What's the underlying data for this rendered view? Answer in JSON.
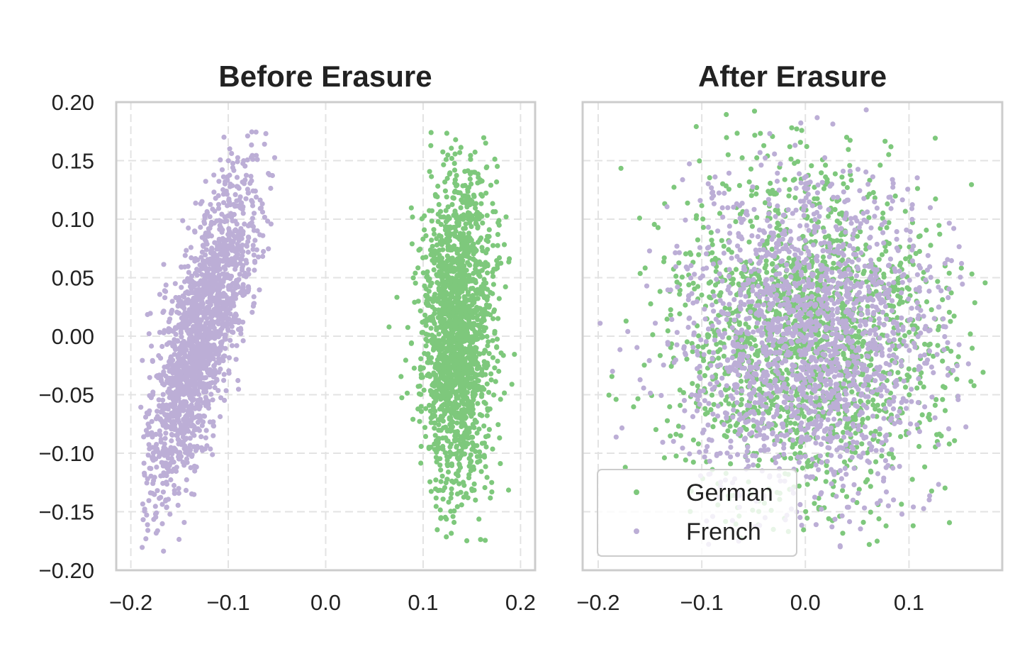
{
  "chart_data": [
    {
      "type": "scatter",
      "title": "Before Erasure",
      "xlim": [
        -0.215,
        0.215
      ],
      "ylim": [
        -0.2,
        0.2
      ],
      "xticks": [
        "−0.2",
        "−0.1",
        "0.0",
        "0.1",
        "0.2"
      ],
      "xtick_values": [
        -0.2,
        -0.1,
        0.0,
        0.1,
        0.2
      ],
      "yticks": [
        "−0.20",
        "−0.15",
        "−0.10",
        "−0.05",
        "0.00",
        "0.05",
        "0.10",
        "0.15",
        "0.20"
      ],
      "ytick_values": [
        -0.2,
        -0.15,
        -0.1,
        -0.05,
        0.0,
        0.05,
        0.1,
        0.15,
        0.2
      ],
      "grid": true,
      "legend": "none",
      "series": [
        {
          "name": "French",
          "color": "#bcaed6",
          "cluster": {
            "center_x": -0.128,
            "center_y": 0.0,
            "sd_x": 0.018,
            "sd_y": 0.07,
            "slope": 0.3,
            "x_range": [
              -0.19,
              -0.045
            ],
            "y_range": [
              -0.188,
              0.178
            ],
            "count": 1800
          }
        },
        {
          "name": "German",
          "color": "#7ec87c",
          "cluster": {
            "center_x": 0.135,
            "center_y": 0.005,
            "sd_x": 0.018,
            "sd_y": 0.068,
            "slope": 0.0,
            "x_range": [
              0.03,
              0.197
            ],
            "y_range": [
              -0.18,
              0.175
            ],
            "count": 1800
          }
        }
      ]
    },
    {
      "type": "scatter",
      "title": "After Erasure",
      "xlim": [
        -0.215,
        0.19
      ],
      "ylim": [
        -0.2,
        0.2
      ],
      "xticks": [
        "−0.2",
        "−0.1",
        "0.0",
        "0.1"
      ],
      "xtick_values": [
        -0.2,
        -0.1,
        0.0,
        0.1
      ],
      "grid": true,
      "legend": "lower-left",
      "series": [
        {
          "name": "German",
          "color": "#7ec87c",
          "cluster": {
            "center_x": 0.0,
            "center_y": 0.0,
            "sd_x": 0.065,
            "sd_y": 0.07,
            "slope": 0.0,
            "x_range": [
              -0.19,
              0.18
            ],
            "y_range": [
              -0.185,
              0.2
            ],
            "count": 1800
          }
        },
        {
          "name": "French",
          "color": "#bcaed6",
          "cluster": {
            "center_x": 0.0,
            "center_y": -0.005,
            "sd_x": 0.063,
            "sd_y": 0.068,
            "slope": 0.0,
            "x_range": [
              -0.2,
              0.16
            ],
            "y_range": [
              -0.18,
              0.195
            ],
            "count": 1800
          }
        }
      ]
    }
  ]
}
